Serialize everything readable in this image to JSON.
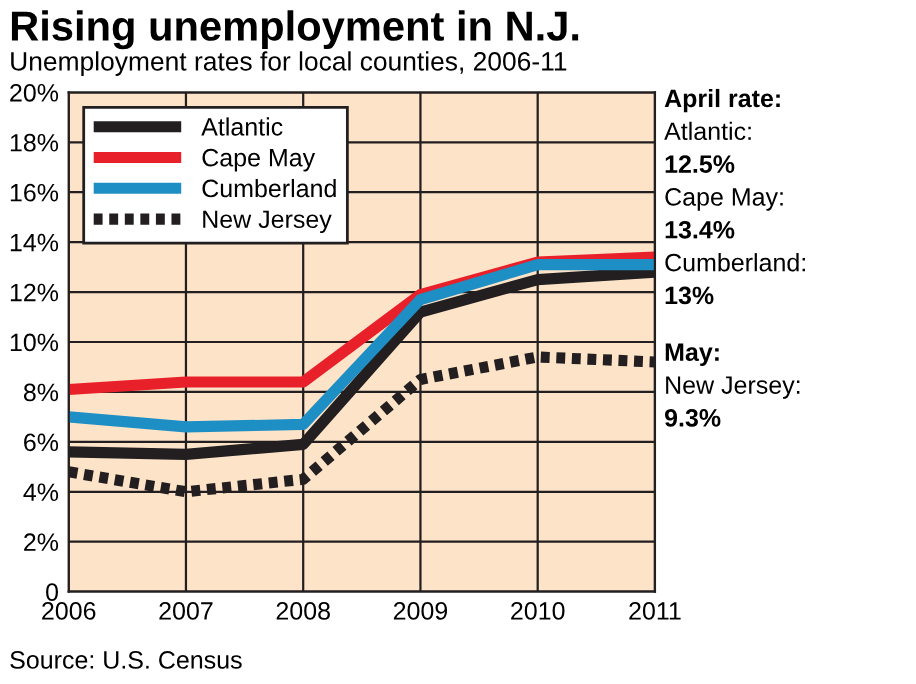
{
  "chart_data": {
    "type": "line",
    "title": "Rising unemployment in N.J.",
    "subtitle": "Unemployment rates for local counties, 2006-11",
    "x": [
      2006,
      2007,
      2008,
      2009,
      2010,
      2011
    ],
    "series": [
      {
        "name": "Atlantic",
        "color": "#231f20",
        "values": [
          5.6,
          5.5,
          5.9,
          11.2,
          12.5,
          12.8
        ]
      },
      {
        "name": "Cape May",
        "color": "#e8202a",
        "values": [
          8.1,
          8.4,
          8.4,
          11.9,
          13.2,
          13.4
        ]
      },
      {
        "name": "Cumberland",
        "color": "#1e8fc4",
        "values": [
          7.0,
          6.6,
          6.7,
          11.7,
          13.1,
          13.1
        ]
      },
      {
        "name": "New Jersey",
        "color": "#231f20",
        "line_style": "dotted",
        "values": [
          4.8,
          4.0,
          4.5,
          8.5,
          9.4,
          9.2
        ]
      }
    ],
    "xlim": [
      2006,
      2011
    ],
    "xticks": [
      2006,
      2007,
      2008,
      2009,
      2010,
      2011
    ],
    "ylim": [
      0,
      20
    ],
    "yticks": [
      {
        "value": 0,
        "label": "0"
      },
      {
        "value": 2,
        "label": "2%"
      },
      {
        "value": 4,
        "label": "4%"
      },
      {
        "value": 6,
        "label": "6%"
      },
      {
        "value": 8,
        "label": "8%"
      },
      {
        "value": 10,
        "label": "10%"
      },
      {
        "value": 12,
        "label": "12%"
      },
      {
        "value": 14,
        "label": "14%"
      },
      {
        "value": 16,
        "label": "16%"
      },
      {
        "value": 18,
        "label": "18%"
      },
      {
        "value": 20,
        "label": "20%"
      }
    ],
    "grid": true,
    "legend": "top left",
    "line_style": "solid",
    "marker": "none",
    "annotations": [
      "April rate:",
      "Atlantic:",
      "12.5%",
      "Cape May:",
      "13.4%",
      "Cumberland:",
      "13%",
      "May:",
      "New Jersey:",
      "9.3%",
      "Source: U.S. Census"
    ]
  }
}
